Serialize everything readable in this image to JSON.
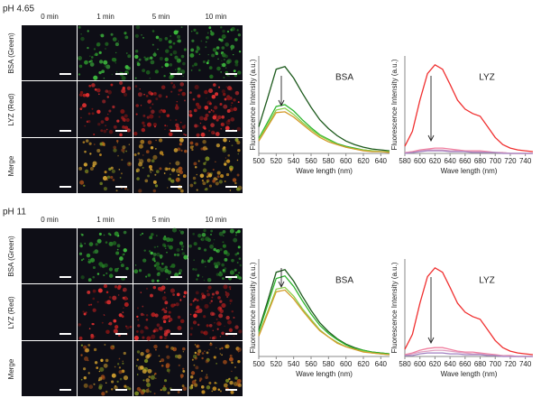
{
  "panels": [
    {
      "title": "pH 4.65",
      "columns": [
        "0 min",
        "1 min",
        "5 min",
        "10 min"
      ],
      "rows": [
        "BSA (Green)",
        "LYZ (Red)",
        "Merge"
      ]
    },
    {
      "title": "pH 11",
      "columns": [
        "0 min",
        "1 min",
        "5 min",
        "10 min"
      ],
      "rows": [
        "BSA (Green)",
        "LYZ (Red)",
        "Merge"
      ]
    }
  ],
  "chart_data": [
    {
      "type": "line",
      "title": "BSA",
      "x_label": "Wave length (nm)",
      "y_label": "Fluorescence Intensity (a.u.)",
      "x": [
        500,
        510,
        520,
        530,
        540,
        550,
        560,
        570,
        580,
        590,
        600,
        610,
        620,
        630,
        640,
        650
      ],
      "xlim": [
        500,
        650
      ],
      "xticks": [
        500,
        520,
        540,
        560,
        580,
        600,
        620,
        640
      ],
      "ylim": [
        0,
        110
      ],
      "series": [
        {
          "color": "#1d5a1d",
          "values": [
            30,
            62,
            95,
            98,
            85,
            68,
            52,
            38,
            28,
            20,
            14,
            10,
            7,
            5,
            4,
            3
          ]
        },
        {
          "color": "#2fb52f",
          "values": [
            17,
            35,
            53,
            55,
            48,
            38,
            29,
            21,
            16,
            11,
            8,
            6,
            4,
            3,
            2,
            2
          ]
        },
        {
          "color": "#8ccf4a",
          "values": [
            16,
            32,
            49,
            51,
            44,
            35,
            27,
            20,
            15,
            10,
            7,
            5,
            4,
            3,
            2,
            2
          ]
        },
        {
          "color": "#d49a2a",
          "values": [
            14,
            30,
            46,
            47,
            41,
            33,
            25,
            18,
            13,
            10,
            7,
            5,
            3,
            2,
            2,
            1
          ]
        }
      ]
    },
    {
      "type": "line",
      "title": "LYZ",
      "x_label": "Wave length (nm)",
      "y_label": "Fluorescence Intensity (a.u.)",
      "x": [
        580,
        590,
        600,
        610,
        620,
        630,
        640,
        650,
        660,
        670,
        680,
        690,
        700,
        710,
        720,
        730,
        740,
        750
      ],
      "xlim": [
        580,
        750
      ],
      "xticks": [
        580,
        600,
        620,
        640,
        660,
        680,
        700,
        720,
        740
      ],
      "ylim": [
        0,
        110
      ],
      "series": [
        {
          "color": "#f03030",
          "values": [
            8,
            25,
            60,
            90,
            100,
            95,
            78,
            60,
            50,
            45,
            42,
            30,
            18,
            10,
            6,
            4,
            3,
            2
          ]
        },
        {
          "color": "#f080a0",
          "values": [
            1,
            2,
            4,
            5,
            6,
            6,
            5,
            4,
            3,
            3,
            3,
            2,
            1,
            1,
            0,
            0,
            0,
            0
          ]
        },
        {
          "color": "#e0a0c0",
          "values": [
            1,
            1,
            3,
            4,
            4,
            4,
            3,
            3,
            2,
            2,
            2,
            1,
            1,
            1,
            0,
            0,
            0,
            0
          ]
        },
        {
          "color": "#a080c0",
          "values": [
            0,
            1,
            2,
            3,
            3,
            3,
            2,
            2,
            2,
            1,
            1,
            1,
            1,
            0,
            0,
            0,
            0,
            0
          ]
        }
      ]
    },
    {
      "type": "line",
      "title": "BSA",
      "x_label": "Wave length (nm)",
      "y_label": "Fluorescence Intensity (a.u.)",
      "x": [
        500,
        510,
        520,
        530,
        540,
        550,
        560,
        570,
        580,
        590,
        600,
        610,
        620,
        630,
        640,
        650
      ],
      "xlim": [
        500,
        650
      ],
      "xticks": [
        500,
        520,
        540,
        560,
        580,
        600,
        620,
        640
      ],
      "ylim": [
        0,
        110
      ],
      "series": [
        {
          "color": "#1d5a1d",
          "values": [
            30,
            62,
            95,
            98,
            85,
            68,
            52,
            38,
            28,
            20,
            14,
            10,
            7,
            5,
            4,
            3
          ]
        },
        {
          "color": "#2fb52f",
          "values": [
            28,
            58,
            88,
            91,
            79,
            63,
            48,
            35,
            26,
            19,
            13,
            9,
            7,
            5,
            4,
            3
          ]
        },
        {
          "color": "#8ccf4a",
          "values": [
            24,
            50,
            76,
            78,
            68,
            54,
            42,
            30,
            22,
            16,
            11,
            8,
            6,
            4,
            3,
            2
          ]
        },
        {
          "color": "#d49a2a",
          "values": [
            23,
            48,
            73,
            75,
            65,
            52,
            40,
            29,
            22,
            15,
            11,
            8,
            5,
            4,
            3,
            2
          ]
        }
      ]
    },
    {
      "type": "line",
      "title": "LYZ",
      "x_label": "Wave length (nm)",
      "y_label": "Fluorescence Intensity (a.u.)",
      "x": [
        580,
        590,
        600,
        610,
        620,
        630,
        640,
        650,
        660,
        670,
        680,
        690,
        700,
        710,
        720,
        730,
        740,
        750
      ],
      "xlim": [
        580,
        750
      ],
      "xticks": [
        580,
        600,
        620,
        640,
        660,
        680,
        700,
        720,
        740
      ],
      "ylim": [
        0,
        110
      ],
      "series": [
        {
          "color": "#f03030",
          "values": [
            8,
            25,
            60,
            90,
            100,
            95,
            78,
            60,
            50,
            45,
            42,
            30,
            18,
            10,
            6,
            4,
            3,
            2
          ]
        },
        {
          "color": "#f080a0",
          "values": [
            2,
            4,
            7,
            9,
            10,
            10,
            8,
            6,
            5,
            5,
            4,
            3,
            2,
            1,
            1,
            0,
            0,
            0
          ]
        },
        {
          "color": "#e0a0c0",
          "values": [
            1,
            3,
            5,
            6,
            7,
            7,
            6,
            5,
            4,
            3,
            3,
            2,
            1,
            1,
            0,
            0,
            0,
            0
          ]
        },
        {
          "color": "#a080c0",
          "values": [
            1,
            1,
            3,
            4,
            4,
            4,
            3,
            3,
            2,
            2,
            2,
            1,
            1,
            0,
            0,
            0,
            0,
            0
          ]
        }
      ]
    }
  ]
}
